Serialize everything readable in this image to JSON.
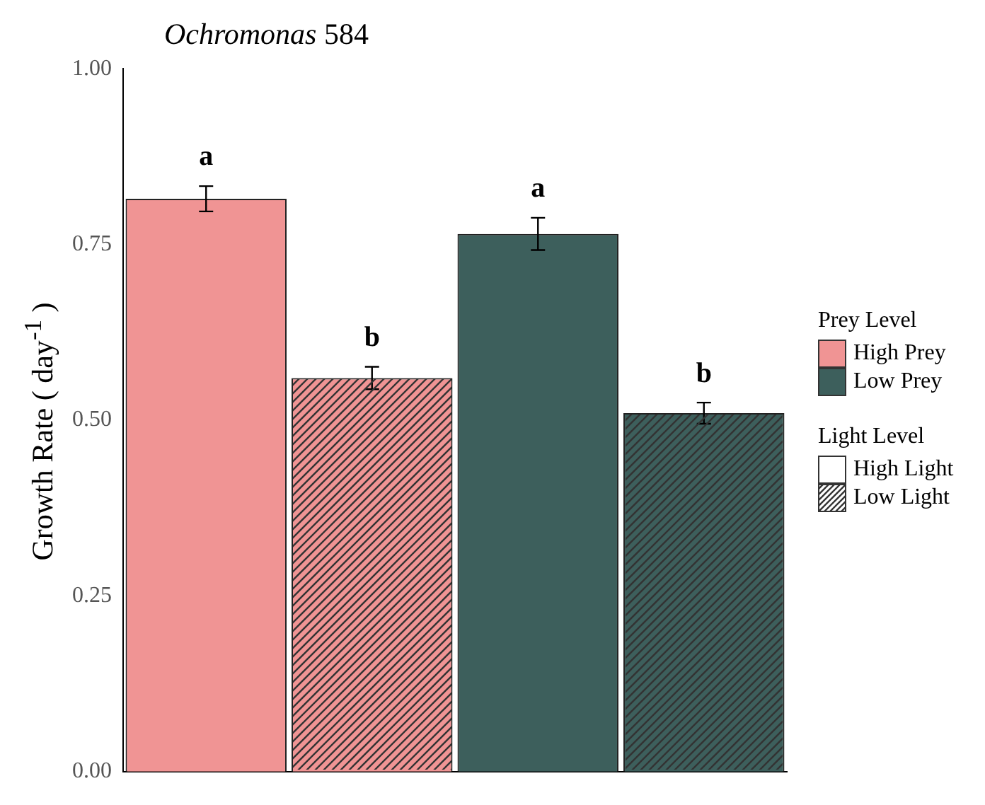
{
  "chart_data": {
    "type": "bar",
    "title": "Ochromonas 584",
    "ylabel": "Growth Rate ( day$^{-1}$ )",
    "legend_title": "Light Level",
    "categories": [
      null,
      null,
      null,
      null
    ],
    "series": [
      {
        "name": "High Light",
        "colors": [
          "#f09494",
          "#f09494",
          "#3d5f5c",
          "#3d5f5c"
        ],
        "values": [
          0.815,
          null,
          0.765,
          null
        ],
        "errors": [
          0.018,
          null,
          0.023,
          null
        ]
      },
      {
        "name": "Low Light",
        "colors": [
          "#f09494",
          "#f09494",
          "#3d5f5c",
          "#3d5f5c"
        ],
        "values": [
          null,
          0.56,
          null,
          0.51
        ],
        "errors": [
          null,
          0.016,
          null,
          0.015
        ]
      }
    ],
    "ylim": [
      0,
      1
    ],
    "yticks": [
      {
        "value": 0,
        "label": "0.00"
      },
      {
        "value": 0.25,
        "label": "0.25"
      },
      {
        "value": 0.5,
        "label": "0.50"
      },
      {
        "value": 0.75,
        "label": "0.75"
      },
      {
        "value": 1,
        "label": "1.00"
      }
    ],
    "annotations": [
      "a",
      "b",
      "a",
      "b",
      "Prey Level",
      "High Prey",
      "Low Prey"
    ],
    "grid": false,
    "legend": "right",
    "tick_labels": "y"
  }
}
